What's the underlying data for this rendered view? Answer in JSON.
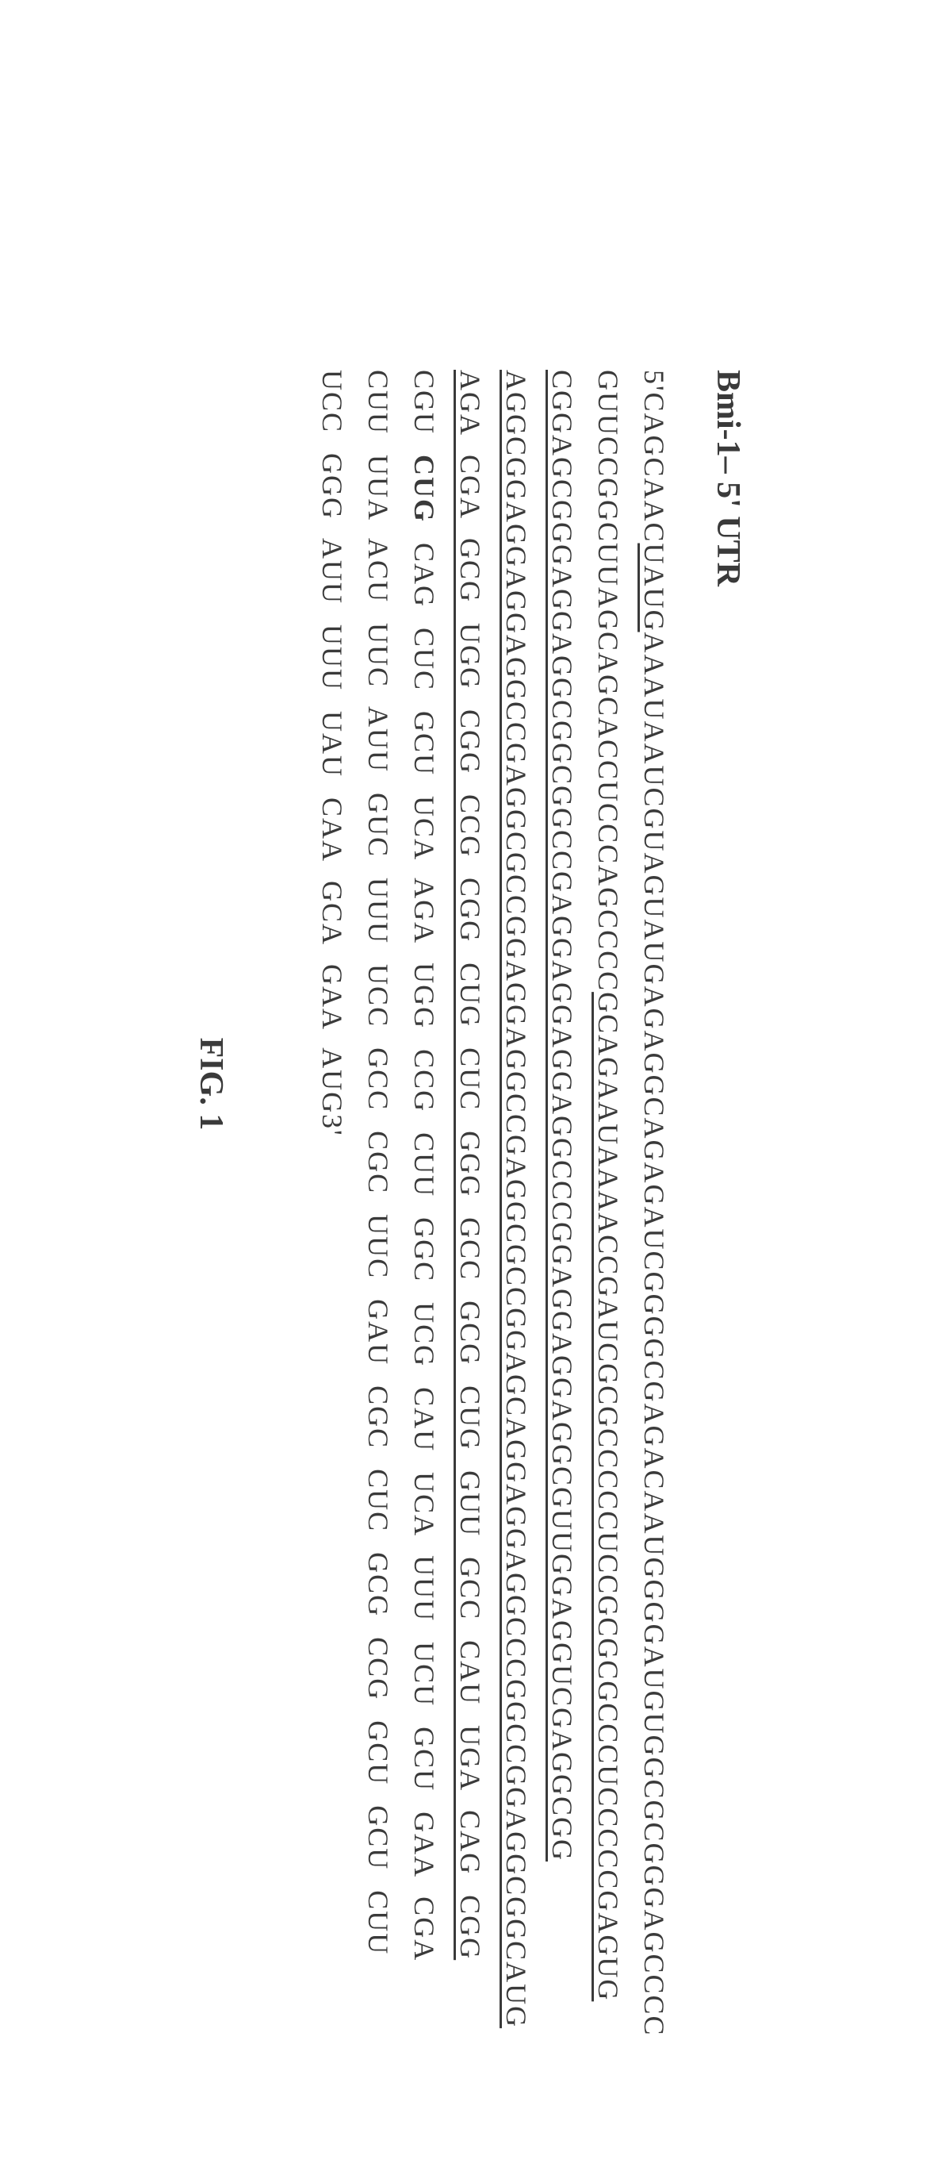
{
  "title": "Bmi-1– 5' UTR",
  "sequence": {
    "prefix": "5'",
    "line1_part1": "CAGCAAC",
    "line1_underlined": "UAUG",
    "line1_part2": "AAAUAAUCGUAGUAUGAGAGGCAGAGAUCGGGGCGAGACAAUGGGGAUGUGGCGCGGGAGCCCC",
    "line2_part1": "GUUCCGGCUUAGCAGCACCUCCCAGCCCC",
    "line2_underlined": "GCAGAAUAAAACCGAUCGCGCCCCCUCCGCGCGCCCUCCCCCGAGUG",
    "line3": "CGGAGCGGGAGGAGGCGGCGGCCGAGGAGGAGGAGGCCCGGAGGAGGAGGCGUUGGAGGUCGAGGCGG",
    "line4_part1": "AGGCGGAGGAGGAGGCCGAGGCGCCGGAGGAGGCCGAGGCGCCGGAGCAGGAGGAGGCCCGGCCGGAGGCGGCAUG",
    "codon_rows": [
      {
        "pre": "AGA CGA GCG UGG CGG CCG CGG CUG CUC GGG GCC GCG CUG GUU GCC CAU UGA CAG CGG",
        "has_underline": true,
        "underline_start": 76
      },
      {
        "pre": "CGU ",
        "bold": "CUG",
        "post": " CAG CUC GCU UCA AGA UGG CCG CUU GGC UCG CAU UCA UUU UCU GCU GAA CGA"
      },
      {
        "full": "CUU UUA ACU UUC AUU GUC UUU UCC GCC CGC UUC GAU CGC CUC GCG CCG GCU GCU CUU"
      },
      {
        "full": "UCC GGG AUU UUU UAU CAA GCA GAA AUG3'"
      }
    ]
  },
  "figure_label": "FIG. 1",
  "colors": {
    "text": "#3a3a3a",
    "background": "#ffffff"
  },
  "typography": {
    "title_fontsize": 42,
    "seq_fontsize": 36,
    "font_family": "Times New Roman"
  }
}
